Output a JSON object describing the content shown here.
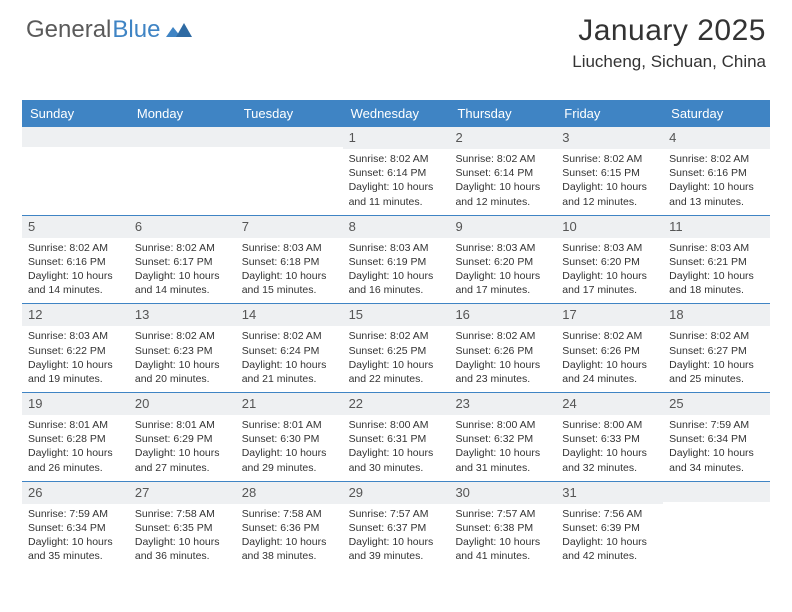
{
  "logo": {
    "word1": "General",
    "word2": "Blue",
    "color_gray": "#5a5a5a",
    "color_blue": "#3f84c4"
  },
  "header": {
    "month_title": "January 2025",
    "location": "Liucheng, Sichuan, China"
  },
  "theme": {
    "header_bg": "#3f84c4",
    "header_text": "#ffffff",
    "week_divider": "#3f84c4",
    "daynum_bg": "#eef0f2",
    "body_text": "#333333",
    "logo_fontsize": 24,
    "title_fontsize": 30,
    "location_fontsize": 17,
    "dayname_fontsize": 13,
    "daynum_fontsize": 13,
    "cell_fontsize": 10.5
  },
  "day_names": [
    "Sunday",
    "Monday",
    "Tuesday",
    "Wednesday",
    "Thursday",
    "Friday",
    "Saturday"
  ],
  "weeks": [
    [
      {
        "n": "",
        "lines": []
      },
      {
        "n": "",
        "lines": []
      },
      {
        "n": "",
        "lines": []
      },
      {
        "n": "1",
        "lines": [
          "Sunrise: 8:02 AM",
          "Sunset: 6:14 PM",
          "Daylight: 10 hours and 11 minutes."
        ]
      },
      {
        "n": "2",
        "lines": [
          "Sunrise: 8:02 AM",
          "Sunset: 6:14 PM",
          "Daylight: 10 hours and 12 minutes."
        ]
      },
      {
        "n": "3",
        "lines": [
          "Sunrise: 8:02 AM",
          "Sunset: 6:15 PM",
          "Daylight: 10 hours and 12 minutes."
        ]
      },
      {
        "n": "4",
        "lines": [
          "Sunrise: 8:02 AM",
          "Sunset: 6:16 PM",
          "Daylight: 10 hours and 13 minutes."
        ]
      }
    ],
    [
      {
        "n": "5",
        "lines": [
          "Sunrise: 8:02 AM",
          "Sunset: 6:16 PM",
          "Daylight: 10 hours and 14 minutes."
        ]
      },
      {
        "n": "6",
        "lines": [
          "Sunrise: 8:02 AM",
          "Sunset: 6:17 PM",
          "Daylight: 10 hours and 14 minutes."
        ]
      },
      {
        "n": "7",
        "lines": [
          "Sunrise: 8:03 AM",
          "Sunset: 6:18 PM",
          "Daylight: 10 hours and 15 minutes."
        ]
      },
      {
        "n": "8",
        "lines": [
          "Sunrise: 8:03 AM",
          "Sunset: 6:19 PM",
          "Daylight: 10 hours and 16 minutes."
        ]
      },
      {
        "n": "9",
        "lines": [
          "Sunrise: 8:03 AM",
          "Sunset: 6:20 PM",
          "Daylight: 10 hours and 17 minutes."
        ]
      },
      {
        "n": "10",
        "lines": [
          "Sunrise: 8:03 AM",
          "Sunset: 6:20 PM",
          "Daylight: 10 hours and 17 minutes."
        ]
      },
      {
        "n": "11",
        "lines": [
          "Sunrise: 8:03 AM",
          "Sunset: 6:21 PM",
          "Daylight: 10 hours and 18 minutes."
        ]
      }
    ],
    [
      {
        "n": "12",
        "lines": [
          "Sunrise: 8:03 AM",
          "Sunset: 6:22 PM",
          "Daylight: 10 hours and 19 minutes."
        ]
      },
      {
        "n": "13",
        "lines": [
          "Sunrise: 8:02 AM",
          "Sunset: 6:23 PM",
          "Daylight: 10 hours and 20 minutes."
        ]
      },
      {
        "n": "14",
        "lines": [
          "Sunrise: 8:02 AM",
          "Sunset: 6:24 PM",
          "Daylight: 10 hours and 21 minutes."
        ]
      },
      {
        "n": "15",
        "lines": [
          "Sunrise: 8:02 AM",
          "Sunset: 6:25 PM",
          "Daylight: 10 hours and 22 minutes."
        ]
      },
      {
        "n": "16",
        "lines": [
          "Sunrise: 8:02 AM",
          "Sunset: 6:26 PM",
          "Daylight: 10 hours and 23 minutes."
        ]
      },
      {
        "n": "17",
        "lines": [
          "Sunrise: 8:02 AM",
          "Sunset: 6:26 PM",
          "Daylight: 10 hours and 24 minutes."
        ]
      },
      {
        "n": "18",
        "lines": [
          "Sunrise: 8:02 AM",
          "Sunset: 6:27 PM",
          "Daylight: 10 hours and 25 minutes."
        ]
      }
    ],
    [
      {
        "n": "19",
        "lines": [
          "Sunrise: 8:01 AM",
          "Sunset: 6:28 PM",
          "Daylight: 10 hours and 26 minutes."
        ]
      },
      {
        "n": "20",
        "lines": [
          "Sunrise: 8:01 AM",
          "Sunset: 6:29 PM",
          "Daylight: 10 hours and 27 minutes."
        ]
      },
      {
        "n": "21",
        "lines": [
          "Sunrise: 8:01 AM",
          "Sunset: 6:30 PM",
          "Daylight: 10 hours and 29 minutes."
        ]
      },
      {
        "n": "22",
        "lines": [
          "Sunrise: 8:00 AM",
          "Sunset: 6:31 PM",
          "Daylight: 10 hours and 30 minutes."
        ]
      },
      {
        "n": "23",
        "lines": [
          "Sunrise: 8:00 AM",
          "Sunset: 6:32 PM",
          "Daylight: 10 hours and 31 minutes."
        ]
      },
      {
        "n": "24",
        "lines": [
          "Sunrise: 8:00 AM",
          "Sunset: 6:33 PM",
          "Daylight: 10 hours and 32 minutes."
        ]
      },
      {
        "n": "25",
        "lines": [
          "Sunrise: 7:59 AM",
          "Sunset: 6:34 PM",
          "Daylight: 10 hours and 34 minutes."
        ]
      }
    ],
    [
      {
        "n": "26",
        "lines": [
          "Sunrise: 7:59 AM",
          "Sunset: 6:34 PM",
          "Daylight: 10 hours and 35 minutes."
        ]
      },
      {
        "n": "27",
        "lines": [
          "Sunrise: 7:58 AM",
          "Sunset: 6:35 PM",
          "Daylight: 10 hours and 36 minutes."
        ]
      },
      {
        "n": "28",
        "lines": [
          "Sunrise: 7:58 AM",
          "Sunset: 6:36 PM",
          "Daylight: 10 hours and 38 minutes."
        ]
      },
      {
        "n": "29",
        "lines": [
          "Sunrise: 7:57 AM",
          "Sunset: 6:37 PM",
          "Daylight: 10 hours and 39 minutes."
        ]
      },
      {
        "n": "30",
        "lines": [
          "Sunrise: 7:57 AM",
          "Sunset: 6:38 PM",
          "Daylight: 10 hours and 41 minutes."
        ]
      },
      {
        "n": "31",
        "lines": [
          "Sunrise: 7:56 AM",
          "Sunset: 6:39 PM",
          "Daylight: 10 hours and 42 minutes."
        ]
      },
      {
        "n": "",
        "lines": []
      }
    ]
  ]
}
